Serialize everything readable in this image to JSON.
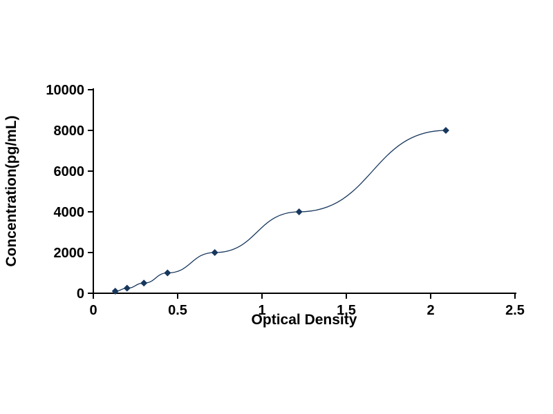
{
  "chart_data": {
    "type": "line",
    "title": "",
    "xlabel": "Optical Density",
    "ylabel": "Concentration(pg/mL)",
    "x": [
      0.13,
      0.2,
      0.3,
      0.44,
      0.72,
      1.22,
      2.09
    ],
    "y": [
      100,
      250,
      500,
      1000,
      2000,
      4000,
      8000
    ],
    "xlim": [
      0,
      2.5
    ],
    "ylim": [
      0,
      10000
    ],
    "x_ticks": [
      0,
      0.5,
      1,
      1.5,
      2,
      2.5
    ],
    "x_tick_labels": [
      "0",
      "0.5",
      "1",
      "1.5",
      "2",
      "2.5"
    ],
    "y_ticks": [
      0,
      2000,
      4000,
      6000,
      8000,
      10000
    ],
    "y_tick_labels": [
      "0",
      "2000",
      "4000",
      "6000",
      "8000",
      "10000"
    ],
    "grid": false,
    "legend_position": "none",
    "marker": "diamond",
    "line_color": "#17375D",
    "marker_color": "#17375D",
    "axis_color": "#000000",
    "background_color": "#ffffff"
  }
}
